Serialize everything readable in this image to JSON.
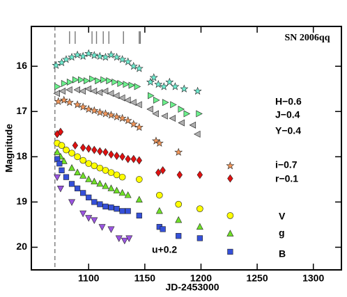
{
  "chart_data": {
    "type": "scatter",
    "title": "SN 2006qq",
    "x_label": "JD-2453000",
    "y_label": "Magnitude",
    "xlim": [
      1049,
      1325
    ],
    "ylim": [
      15.12,
      20.5
    ],
    "invert_y": true,
    "xticks": [
      1100,
      1150,
      1200,
      1250,
      1300
    ],
    "yticks": [
      16,
      17,
      18,
      19,
      20
    ],
    "reference_line_x": 1070,
    "spectrum_epochs": [
      1083,
      1088,
      1103,
      1107,
      1113,
      1118,
      1131,
      1145,
      1146
    ],
    "series": [
      {
        "name": "H−0.6",
        "color": "#70ecd0",
        "marker": "star",
        "x": [
          1071,
          1076,
          1080,
          1085,
          1090,
          1095,
          1100,
          1105,
          1110,
          1115,
          1120,
          1125,
          1130,
          1135,
          1140,
          1145,
          1155,
          1158,
          1162,
          1167,
          1172,
          1177,
          1185,
          1197
        ],
        "values": [
          15.98,
          15.92,
          15.85,
          15.8,
          15.75,
          15.78,
          15.72,
          15.76,
          15.78,
          15.8,
          15.75,
          15.8,
          15.85,
          15.9,
          16.0,
          16.05,
          16.35,
          16.25,
          16.4,
          16.45,
          16.35,
          16.45,
          16.5,
          16.55
        ]
      },
      {
        "name": "J−0.4",
        "color": "#6cf08c",
        "marker": "tri-right",
        "x": [
          1072,
          1078,
          1083,
          1088,
          1093,
          1098,
          1103,
          1108,
          1113,
          1118,
          1123,
          1128,
          1133,
          1138,
          1143,
          1155,
          1160,
          1168,
          1175,
          1182,
          1187,
          1198
        ],
        "values": [
          16.45,
          16.38,
          16.35,
          16.3,
          16.3,
          16.32,
          16.28,
          16.32,
          16.3,
          16.32,
          16.35,
          16.38,
          16.4,
          16.42,
          16.45,
          16.65,
          16.75,
          16.8,
          16.85,
          16.95,
          17.05,
          17.05
        ]
      },
      {
        "name": "Y−0.4",
        "color": "#b0b0b0",
        "marker": "tri-left",
        "x": [
          1072,
          1077,
          1083,
          1090,
          1095,
          1100,
          1105,
          1110,
          1115,
          1120,
          1125,
          1130,
          1135,
          1140,
          1145,
          1155,
          1160,
          1168,
          1175,
          1183,
          1193,
          1197
        ],
        "values": [
          16.6,
          16.55,
          16.52,
          16.52,
          16.55,
          16.5,
          16.55,
          16.58,
          16.55,
          16.6,
          16.65,
          16.7,
          16.75,
          16.8,
          16.85,
          16.95,
          17.05,
          17.1,
          17.15,
          17.25,
          17.3,
          17.5
        ]
      },
      {
        "name": "i−0.7",
        "color": "#f0965a",
        "marker": "star",
        "x": [
          1073,
          1078,
          1083,
          1090,
          1095,
          1100,
          1105,
          1110,
          1115,
          1120,
          1125,
          1130,
          1135,
          1140,
          1145,
          1160,
          1163,
          1180,
          1226
        ],
        "values": [
          16.78,
          16.75,
          16.8,
          16.85,
          16.9,
          16.95,
          16.98,
          17.02,
          17.05,
          17.08,
          17.12,
          17.15,
          17.2,
          17.28,
          17.35,
          17.65,
          17.7,
          17.9,
          18.2
        ]
      },
      {
        "name": "r−0.1",
        "color": "#e01010",
        "marker": "diamond",
        "x": [
          1072,
          1075,
          1088,
          1095,
          1100,
          1105,
          1110,
          1115,
          1120,
          1125,
          1130,
          1135,
          1140,
          1145,
          1162,
          1166,
          1181,
          1199,
          1226
        ],
        "values": [
          17.5,
          17.45,
          17.75,
          17.8,
          17.82,
          17.85,
          17.88,
          17.9,
          17.95,
          17.98,
          18.0,
          18.05,
          18.05,
          18.08,
          18.35,
          18.3,
          18.4,
          18.4,
          18.48
        ]
      },
      {
        "name": "V",
        "color": "#ffff00",
        "marker": "circle",
        "x": [
          1072,
          1076,
          1080,
          1085,
          1090,
          1095,
          1100,
          1105,
          1110,
          1115,
          1120,
          1125,
          1130,
          1145,
          1163,
          1180,
          1199,
          1226
        ],
        "values": [
          17.7,
          17.75,
          17.85,
          17.92,
          18.0,
          18.08,
          18.15,
          18.2,
          18.25,
          18.3,
          18.35,
          18.4,
          18.45,
          18.5,
          18.85,
          19.05,
          19.15,
          19.3
        ]
      },
      {
        "name": "g",
        "color": "#70e028",
        "marker": "tri-up",
        "x": [
          1072,
          1075,
          1078,
          1085,
          1090,
          1095,
          1100,
          1105,
          1110,
          1115,
          1120,
          1125,
          1130,
          1135,
          1145,
          1163,
          1180,
          1199,
          1226
        ],
        "values": [
          17.9,
          18.0,
          18.1,
          18.25,
          18.35,
          18.42,
          18.5,
          18.55,
          18.6,
          18.65,
          18.7,
          18.75,
          18.8,
          18.85,
          18.95,
          19.2,
          19.4,
          19.55,
          19.7
        ]
      },
      {
        "name": "B",
        "color": "#3550d8",
        "marker": "square",
        "x": [
          1072,
          1074,
          1076,
          1080,
          1085,
          1090,
          1095,
          1100,
          1105,
          1110,
          1115,
          1120,
          1125,
          1130,
          1135,
          1145,
          1163,
          1166,
          1180,
          1199,
          1226
        ],
        "values": [
          18.05,
          18.15,
          18.3,
          18.45,
          18.6,
          18.7,
          18.8,
          18.9,
          19.0,
          19.05,
          19.1,
          19.12,
          19.15,
          19.2,
          19.2,
          19.3,
          19.55,
          19.6,
          19.75,
          19.8,
          20.1
        ]
      },
      {
        "name": "u+0.2",
        "color": "#9a55e0",
        "marker": "tri-down",
        "x": [
          1072,
          1075,
          1085,
          1095,
          1100,
          1105,
          1112,
          1120,
          1127,
          1132,
          1136
        ],
        "values": [
          18.45,
          18.7,
          19.0,
          19.25,
          19.35,
          19.4,
          19.55,
          19.6,
          19.8,
          19.85,
          19.8
        ]
      }
    ]
  }
}
